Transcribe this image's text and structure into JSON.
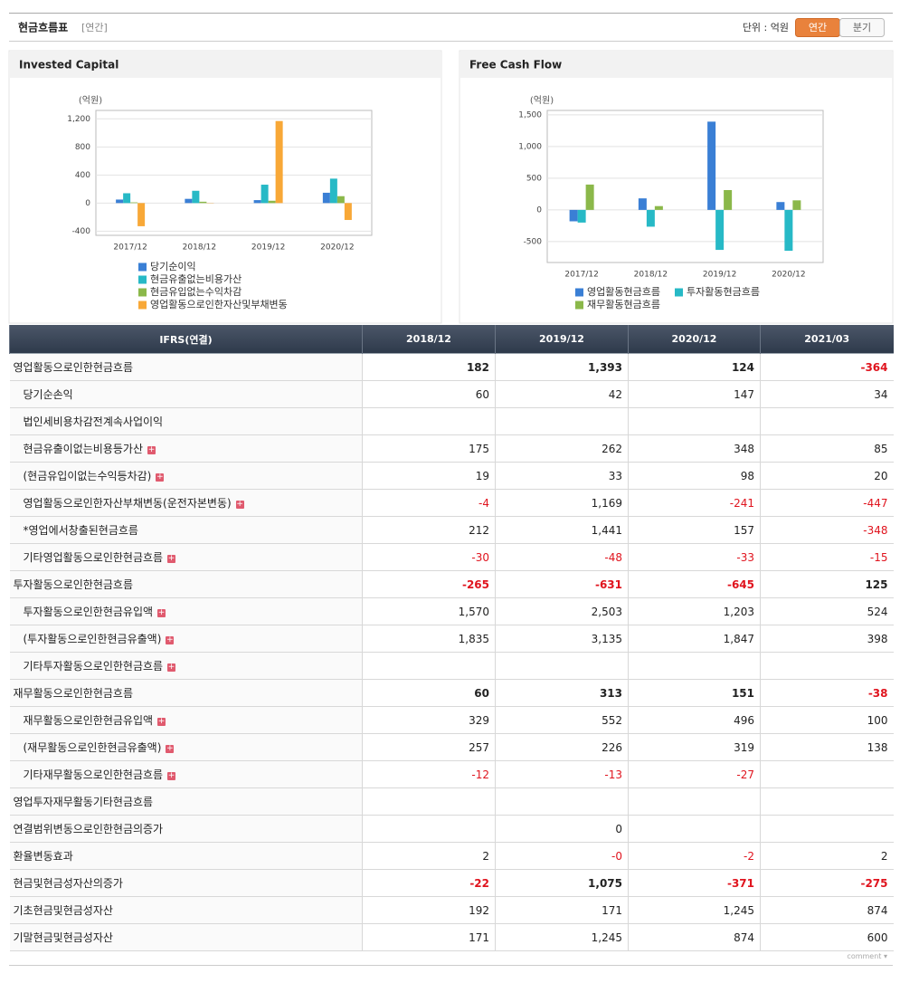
{
  "header": {
    "title": "현금흐름표",
    "period": "[연간]",
    "unit": "단위 : 억원",
    "tabs": [
      "연간",
      "분기"
    ]
  },
  "chart_data": [
    {
      "type": "bar",
      "title": "Invested Capital",
      "y_label": "(억원)",
      "categories": [
        "2017/12",
        "2018/12",
        "2019/12",
        "2020/12"
      ],
      "series": [
        {
          "name": "당기순이익",
          "color": "#3a7fd5",
          "values": [
            50,
            60,
            42,
            147
          ]
        },
        {
          "name": "현금유출없는비용가산",
          "color": "#27b9c6",
          "values": [
            140,
            175,
            262,
            348
          ]
        },
        {
          "name": "현금유입없는수익차감",
          "color": "#8bb84a",
          "values": [
            10,
            19,
            33,
            98
          ]
        },
        {
          "name": "영업활동으로인한자산및부채변동",
          "color": "#f8a837",
          "values": [
            -330,
            -4,
            1169,
            -241
          ]
        }
      ],
      "ylim": [
        -460,
        1320
      ],
      "yticks": [
        -400,
        0,
        400,
        800,
        {
          "value": 1200,
          "label": "1,200"
        }
      ],
      "grid": true
    },
    {
      "type": "bar",
      "title": "Free Cash Flow",
      "y_label": "(억원)",
      "categories": [
        "2017/12",
        "2018/12",
        "2019/12",
        "2020/12"
      ],
      "series": [
        {
          "name": "영업활동현금흐름",
          "color": "#3a7fd5",
          "values": [
            -180,
            182,
            1393,
            124
          ]
        },
        {
          "name": "투자활동현금흐름",
          "color": "#27b9c6",
          "values": [
            -200,
            -265,
            -631,
            -645
          ]
        },
        {
          "name": "재무활동현금흐름",
          "color": "#8bb84a",
          "values": [
            400,
            60,
            313,
            151
          ]
        }
      ],
      "ylim": [
        -830,
        1570
      ],
      "yticks": [
        -500,
        0,
        500,
        {
          "value": 1000,
          "label": "1,000"
        },
        {
          "value": 1500,
          "label": "1,500"
        }
      ],
      "grid": true
    }
  ],
  "table": {
    "columns": [
      "IFRS(연결)",
      "2018/12",
      "2019/12",
      "2020/12",
      "2021/03"
    ],
    "rows": [
      {
        "label": "영업활동으로인한현금흐름",
        "values": [
          "182",
          "1,393",
          "124",
          "-364"
        ]
      },
      {
        "label": "당기순손익",
        "values": [
          "60",
          "42",
          "147",
          "34"
        ]
      },
      {
        "label": "법인세비용차감전계속사업이익",
        "values": [
          null,
          null,
          null,
          null
        ]
      },
      {
        "label": "현금유출이없는비용등가산",
        "values": [
          "175",
          "262",
          "348",
          "85"
        ]
      },
      {
        "label": "(현금유입이없는수익등차감)",
        "values": [
          "19",
          "33",
          "98",
          "20"
        ]
      },
      {
        "label": "영업활동으로인한자산부채변동(운전자본변동)",
        "values": [
          "-4",
          "1,169",
          "-241",
          "-447"
        ]
      },
      {
        "label": "*영업에서창출된현금흐름",
        "values": [
          "212",
          "1,441",
          "157",
          "-348"
        ]
      },
      {
        "label": "기타영업활동으로인한현금흐름",
        "values": [
          "-30",
          "-48",
          "-33",
          "-15"
        ]
      },
      {
        "label": "투자활동으로인한현금흐름",
        "values": [
          "-265",
          "-631",
          "-645",
          "125"
        ]
      },
      {
        "label": "투자활동으로인한현금유입액",
        "values": [
          "1,570",
          "2,503",
          "1,203",
          "524"
        ]
      },
      {
        "label": "(투자활동으로인한현금유출액)",
        "values": [
          "1,835",
          "3,135",
          "1,847",
          "398"
        ]
      },
      {
        "label": "기타투자활동으로인한현금흐름",
        "values": [
          null,
          null,
          null,
          null
        ]
      },
      {
        "label": "재무활동으로인한현금흐름",
        "values": [
          "60",
          "313",
          "151",
          "-38"
        ]
      },
      {
        "label": "재무활동으로인한현금유입액",
        "values": [
          "329",
          "552",
          "496",
          "100"
        ]
      },
      {
        "label": "(재무활동으로인한현금유출액)",
        "values": [
          "257",
          "226",
          "319",
          "138"
        ]
      },
      {
        "label": "기타재무활동으로인한현금흐름",
        "values": [
          "-12",
          "-13",
          "-27",
          null
        ]
      },
      {
        "label": "영업투자재무활동기타현금흐름",
        "values": [
          null,
          null,
          null,
          null
        ]
      },
      {
        "label": "연결범위변동으로인한현금의증가",
        "values": [
          null,
          "0",
          null,
          null
        ]
      },
      {
        "label": "환율변동효과",
        "values": [
          "2",
          "-0",
          "-2",
          "2"
        ]
      },
      {
        "label": "현금및현금성자산의증가",
        "values": [
          "-22",
          "1,075",
          "-371",
          "-275"
        ]
      },
      {
        "label": "기초현금및현금성자산",
        "values": [
          "192",
          "171",
          "1,245",
          "874"
        ]
      },
      {
        "label": "기말현금및현금성자산",
        "values": [
          "171",
          "1,245",
          "874",
          "600"
        ]
      }
    ]
  },
  "footer": "comment"
}
